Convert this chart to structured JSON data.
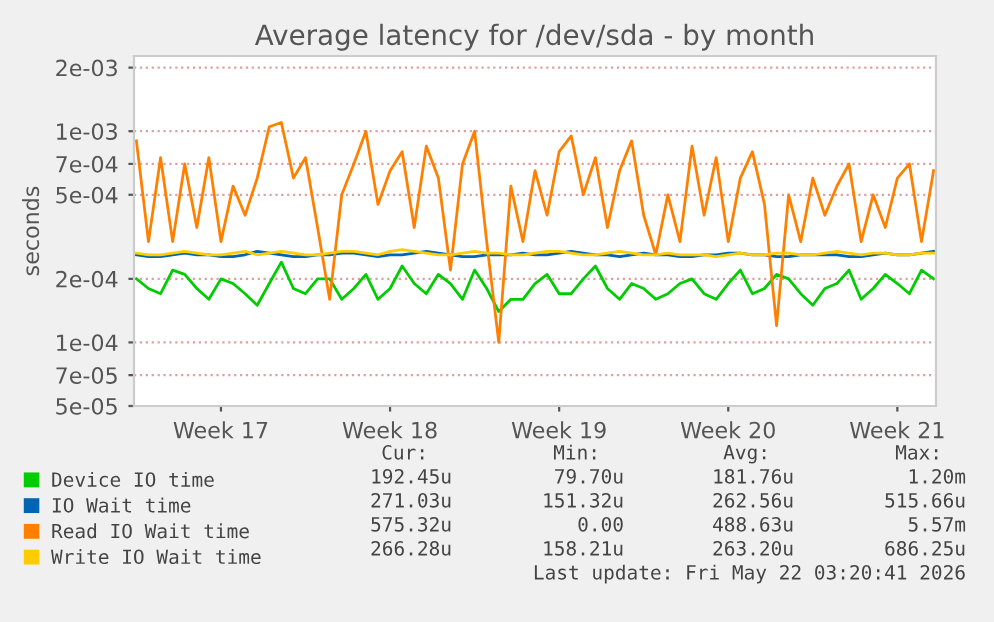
{
  "chart_data": {
    "type": "line",
    "title": "Average latency for /dev/sda - by month",
    "ylabel": "seconds",
    "log": "y",
    "grid": "y",
    "legend": "bottom",
    "marker": "none",
    "line_style": "solid",
    "categories": [
      null,
      null,
      null,
      null,
      null,
      null,
      null,
      "Week 17",
      null,
      null,
      null,
      null,
      null,
      null,
      null,
      null,
      null,
      null,
      null,
      null,
      null,
      "Week 18",
      null,
      null,
      null,
      null,
      null,
      null,
      null,
      null,
      null,
      null,
      null,
      null,
      null,
      "Week 19",
      null,
      null,
      null,
      null,
      null,
      null,
      null,
      null,
      null,
      null,
      null,
      null,
      null,
      "Week 20",
      null,
      null,
      null,
      null,
      null,
      null,
      null,
      null,
      null,
      null,
      null,
      null,
      null,
      "Week 21",
      null,
      null,
      null
    ],
    "ylim": [
      5e-05,
      0.00227
    ],
    "yticks": [
      {
        "value": 5e-05,
        "label": "5e-05"
      },
      {
        "value": 7e-05,
        "label": "7e-05"
      },
      {
        "value": 0.0001,
        "label": "1e-04"
      },
      {
        "value": 0.0002,
        "label": "2e-04"
      },
      {
        "value": 0.0005,
        "label": "5e-04"
      },
      {
        "value": 0.0007,
        "label": "7e-04"
      },
      {
        "value": 0.001,
        "label": "1e-03"
      },
      {
        "value": 0.002,
        "label": "2e-03"
      }
    ],
    "series": [
      {
        "name": "Device IO time",
        "color": "#00cc00",
        "values": [
          0.0002,
          0.00018,
          0.00017,
          0.00022,
          0.00021,
          0.00018,
          0.00016,
          0.0002,
          0.00019,
          0.00017,
          0.00015,
          0.00019,
          0.00024,
          0.00018,
          0.00017,
          0.0002,
          0.0002,
          0.00016,
          0.00018,
          0.00021,
          0.00016,
          0.00018,
          0.00023,
          0.00019,
          0.00017,
          0.00021,
          0.00019,
          0.00016,
          0.00022,
          0.00018,
          0.00014,
          0.00016,
          0.00016,
          0.00019,
          0.00021,
          0.00017,
          0.00017,
          0.0002,
          0.00023,
          0.00018,
          0.00016,
          0.00019,
          0.00018,
          0.00016,
          0.00017,
          0.00019,
          0.0002,
          0.00017,
          0.00016,
          0.00019,
          0.00022,
          0.00017,
          0.00018,
          0.00021,
          0.0002,
          0.00017,
          0.00015,
          0.00018,
          0.00019,
          0.00022,
          0.00016,
          0.00018,
          0.00021,
          0.00019,
          0.00017,
          0.00022,
          0.0002
        ]
      },
      {
        "name": "IO Wait time",
        "color": "#0066b3",
        "values": [
          0.00026,
          0.000255,
          0.000255,
          0.00026,
          0.000265,
          0.00026,
          0.00026,
          0.000255,
          0.000255,
          0.00026,
          0.00027,
          0.000265,
          0.00026,
          0.000255,
          0.000255,
          0.00026,
          0.00026,
          0.000265,
          0.000265,
          0.00026,
          0.000255,
          0.00026,
          0.00026,
          0.000265,
          0.00027,
          0.000265,
          0.00026,
          0.000255,
          0.000255,
          0.00026,
          0.00026,
          0.00026,
          0.000265,
          0.00026,
          0.00026,
          0.000265,
          0.00027,
          0.000265,
          0.00026,
          0.00026,
          0.000255,
          0.00026,
          0.000265,
          0.00026,
          0.00026,
          0.000255,
          0.000255,
          0.00026,
          0.00026,
          0.000265,
          0.000265,
          0.00026,
          0.00026,
          0.000255,
          0.000255,
          0.00026,
          0.00026,
          0.00026,
          0.00026,
          0.000255,
          0.000255,
          0.00026,
          0.000265,
          0.00026,
          0.00026,
          0.000265,
          0.00027
        ]
      },
      {
        "name": "Read IO Wait time",
        "color": "#ff8000",
        "values": [
          0.0009,
          0.0003,
          0.00075,
          0.0003,
          0.0007,
          0.00035,
          0.00075,
          0.0003,
          0.00055,
          0.0004,
          0.0006,
          0.00105,
          0.0011,
          0.0006,
          0.00075,
          0.00035,
          0.00016,
          0.0005,
          0.0007,
          0.001,
          0.00045,
          0.00065,
          0.0008,
          0.00035,
          0.00085,
          0.0006,
          0.00022,
          0.0007,
          0.001,
          0.0003,
          0.0001,
          0.00055,
          0.0003,
          0.00065,
          0.0004,
          0.0008,
          0.00095,
          0.0005,
          0.00075,
          0.00035,
          0.00065,
          0.0009,
          0.0004,
          0.00026,
          0.0005,
          0.0003,
          0.00085,
          0.0004,
          0.00075,
          0.0003,
          0.0006,
          0.0008,
          0.00045,
          0.00012,
          0.0005,
          0.0003,
          0.0006,
          0.0004,
          0.00055,
          0.0007,
          0.0003,
          0.0005,
          0.00035,
          0.0006,
          0.0007,
          0.0003,
          0.00065
        ]
      },
      {
        "name": "Write IO Wait time",
        "color": "#ffcc00",
        "values": [
          0.000265,
          0.00026,
          0.00026,
          0.000265,
          0.00027,
          0.000265,
          0.00026,
          0.00026,
          0.000265,
          0.00027,
          0.00026,
          0.000265,
          0.00027,
          0.000265,
          0.00026,
          0.00026,
          0.000265,
          0.00027,
          0.00027,
          0.000265,
          0.00026,
          0.00027,
          0.000275,
          0.00027,
          0.000265,
          0.00026,
          0.00026,
          0.000265,
          0.00027,
          0.000265,
          0.000265,
          0.00026,
          0.00026,
          0.000265,
          0.00027,
          0.00027,
          0.000265,
          0.00026,
          0.00026,
          0.000265,
          0.00027,
          0.000265,
          0.00026,
          0.00026,
          0.000265,
          0.00026,
          0.00026,
          0.00026,
          0.000255,
          0.00026,
          0.000265,
          0.00026,
          0.00026,
          0.000265,
          0.000265,
          0.00026,
          0.00026,
          0.000265,
          0.00027,
          0.000265,
          0.00026,
          0.000265,
          0.000265,
          0.00026,
          0.00026,
          0.000265,
          0.000265
        ]
      }
    ],
    "annotations": [
      "Cur:",
      "Min:",
      "Avg:",
      "Max:",
      "192.45u",
      "79.70u",
      "181.76u",
      "1.20m",
      "271.03u",
      "151.32u",
      "262.56u",
      "515.66u",
      "575.32u",
      "0.00",
      "488.63u",
      "5.57m",
      "266.28u",
      "158.21u",
      "263.20u",
      "686.25u",
      "Last update: Fri May 22 03:20:41 2026"
    ]
  }
}
